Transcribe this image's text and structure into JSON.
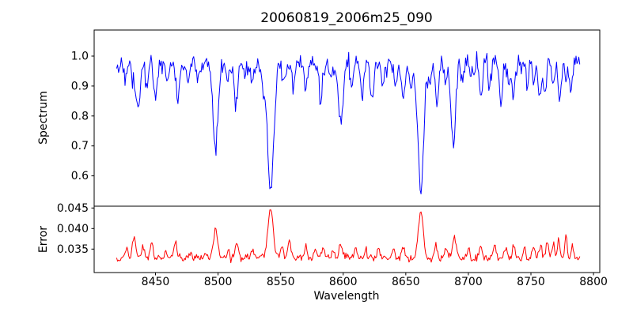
{
  "figure": {
    "background": "#ffffff",
    "text_color": "#000000"
  },
  "chart_data": {
    "type": "line",
    "title": "20060819_2006m25_090",
    "xlabel": "Wavelength",
    "grid": false,
    "legend": "none",
    "xlim": [
      8401,
      8805
    ],
    "x_ticks": [
      8450,
      8500,
      8550,
      8600,
      8650,
      8700,
      8750,
      8800
    ],
    "x_data_range": [
      8419,
      8789
    ],
    "n_points": 500,
    "noise_seed": 42,
    "subplots": [
      {
        "name": "spectrum",
        "ylabel": "Spectrum",
        "line_color": "#0000ff",
        "ylim": [
          0.4987,
          1.0871
        ],
        "y_ticks": [
          {
            "value": 1.0,
            "label": "1.0"
          },
          {
            "value": 0.9,
            "label": "0.9"
          },
          {
            "value": 0.8,
            "label": "0.8"
          },
          {
            "value": 0.7,
            "label": "0.7"
          },
          {
            "value": 0.6,
            "label": "0.6"
          }
        ],
        "continuum": 0.975,
        "noise_std": 0.016,
        "absorption_lines": [
          [
            8427,
            0.05,
            1.0
          ],
          [
            8432,
            0.06,
            1.2
          ],
          [
            8436,
            0.15,
            1.6
          ],
          [
            8443,
            0.08,
            1.2
          ],
          [
            8450,
            0.1,
            1.4
          ],
          [
            8460,
            0.06,
            1.1
          ],
          [
            8468,
            0.13,
            1.5
          ],
          [
            8476,
            0.05,
            1.0
          ],
          [
            8484,
            0.06,
            1.1
          ],
          [
            8498,
            0.29,
            2.0
          ],
          [
            8508,
            0.05,
            1.0
          ],
          [
            8514,
            0.14,
            1.5
          ],
          [
            8521,
            0.05,
            1.0
          ],
          [
            8527,
            0.07,
            1.2
          ],
          [
            8536,
            0.08,
            1.4
          ],
          [
            8542,
            0.43,
            2.5
          ],
          [
            8552,
            0.07,
            1.2
          ],
          [
            8560,
            0.08,
            1.2
          ],
          [
            8570,
            0.09,
            1.3
          ],
          [
            8582,
            0.12,
            1.4
          ],
          [
            8590,
            0.06,
            1.1
          ],
          [
            8598,
            0.19,
            1.7
          ],
          [
            8607,
            0.07,
            1.1
          ],
          [
            8615,
            0.11,
            1.3
          ],
          [
            8623,
            0.12,
            1.3
          ],
          [
            8632,
            0.08,
            1.2
          ],
          [
            8642,
            0.07,
            1.1
          ],
          [
            8648,
            0.11,
            1.4
          ],
          [
            8654,
            0.08,
            1.1
          ],
          [
            8662,
            0.42,
            2.3
          ],
          [
            8669,
            0.06,
            1.0
          ],
          [
            8675,
            0.13,
            1.3
          ],
          [
            8682,
            0.07,
            1.1
          ],
          [
            8688,
            0.26,
            1.8
          ],
          [
            8695,
            0.06,
            1.0
          ],
          [
            8702,
            0.06,
            1.0
          ],
          [
            8710,
            0.11,
            1.3
          ],
          [
            8717,
            0.08,
            1.1
          ],
          [
            8726,
            0.12,
            1.3
          ],
          [
            8732,
            0.07,
            1.0
          ],
          [
            8736,
            0.1,
            1.2
          ],
          [
            8747,
            0.08,
            1.1
          ],
          [
            8752,
            0.06,
            1.0
          ],
          [
            8757,
            0.1,
            1.2
          ],
          [
            8761,
            0.11,
            1.2
          ],
          [
            8768,
            0.07,
            1.0
          ],
          [
            8773,
            0.11,
            1.3
          ],
          [
            8778,
            0.06,
            1.0
          ],
          [
            8782,
            0.08,
            1.1
          ]
        ]
      },
      {
        "name": "error",
        "ylabel": "Error",
        "line_color": "#ff0000",
        "ylim": [
          0.02929,
          0.04544
        ],
        "y_ticks": [
          {
            "value": 0.045,
            "label": "0.045"
          },
          {
            "value": 0.04,
            "label": "0.040"
          },
          {
            "value": 0.035,
            "label": "0.035"
          }
        ],
        "baseline": 0.0328,
        "noise_std": 0.00045,
        "peaks": [
          [
            8427,
            0.002,
            1.2
          ],
          [
            8433,
            0.0048,
            1.4
          ],
          [
            8440,
            0.0026,
            1.1
          ],
          [
            8447,
            0.0036,
            1.2
          ],
          [
            8458,
            0.0018,
            1.0
          ],
          [
            8466,
            0.0034,
            1.3
          ],
          [
            8478,
            0.0016,
            1.0
          ],
          [
            8490,
            0.0018,
            1.0
          ],
          [
            8498,
            0.0072,
            1.7
          ],
          [
            8508,
            0.002,
            1.0
          ],
          [
            8515,
            0.0038,
            1.2
          ],
          [
            8527,
            0.002,
            1.0
          ],
          [
            8542,
            0.0122,
            2.1
          ],
          [
            8551,
            0.003,
            1.1
          ],
          [
            8557,
            0.004,
            1.2
          ],
          [
            8570,
            0.0028,
            1.1
          ],
          [
            8578,
            0.0022,
            1.0
          ],
          [
            8584,
            0.0026,
            1.1
          ],
          [
            8592,
            0.002,
            1.0
          ],
          [
            8598,
            0.0034,
            1.3
          ],
          [
            8610,
            0.0022,
            1.0
          ],
          [
            8618,
            0.0024,
            1.0
          ],
          [
            8628,
            0.002,
            1.0
          ],
          [
            8640,
            0.0022,
            1.0
          ],
          [
            8648,
            0.0026,
            1.1
          ],
          [
            8662,
            0.0116,
            1.9
          ],
          [
            8674,
            0.0034,
            1.1
          ],
          [
            8682,
            0.0022,
            1.0
          ],
          [
            8689,
            0.0054,
            1.4
          ],
          [
            8700,
            0.0022,
            1.0
          ],
          [
            8710,
            0.0028,
            1.1
          ],
          [
            8721,
            0.0032,
            1.1
          ],
          [
            8730,
            0.0024,
            1.0
          ],
          [
            8736,
            0.003,
            1.1
          ],
          [
            8745,
            0.0026,
            1.0
          ],
          [
            8752,
            0.003,
            1.0
          ],
          [
            8758,
            0.0034,
            1.0
          ],
          [
            8763,
            0.004,
            1.0
          ],
          [
            8768,
            0.0036,
            0.9
          ],
          [
            8772,
            0.0044,
            1.0
          ],
          [
            8778,
            0.0055,
            0.9
          ],
          [
            8783,
            0.003,
            0.9
          ]
        ]
      }
    ]
  }
}
